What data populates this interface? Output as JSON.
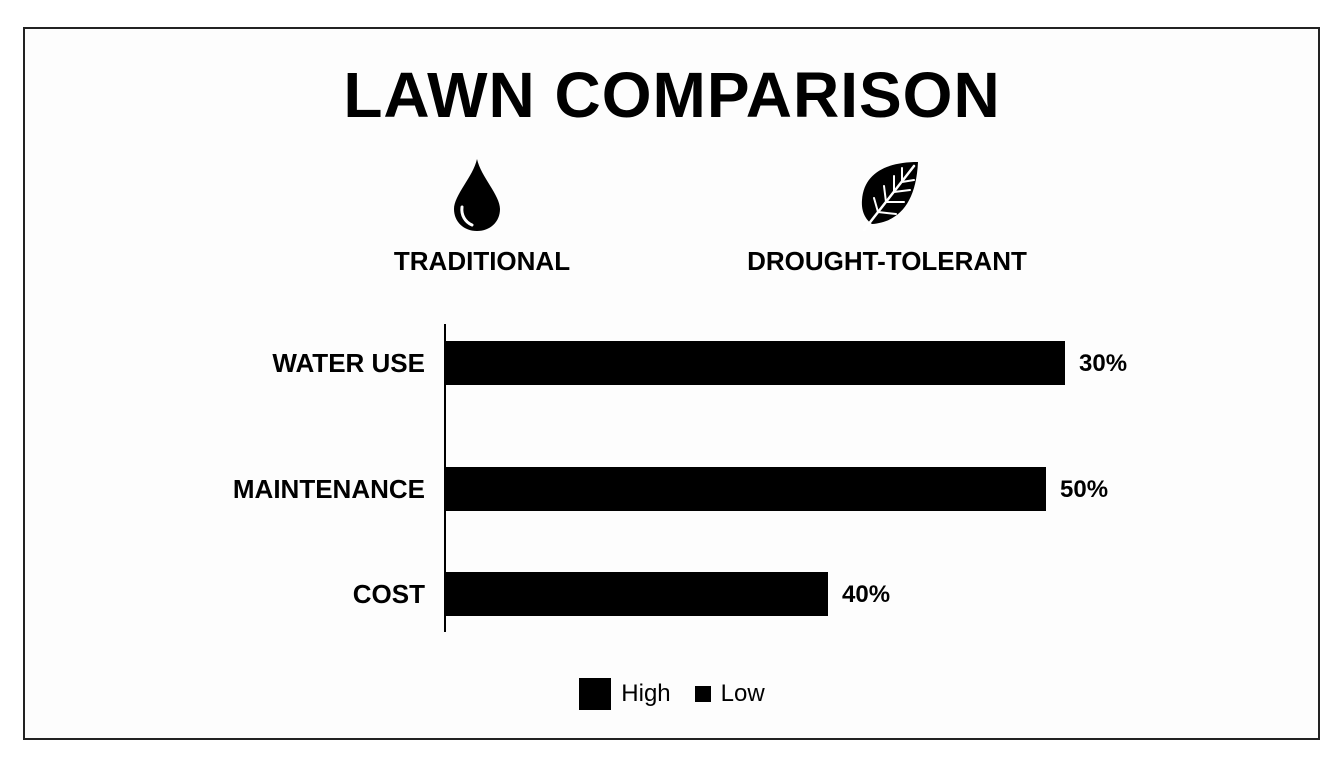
{
  "title": "LAWN COMPARISON",
  "columns": [
    {
      "label": "TRADITIONAL",
      "icon": "water-drop-icon"
    },
    {
      "label": "DROUGHT-TOLERANT",
      "icon": "leaf-icon"
    }
  ],
  "chart_data": {
    "type": "bar",
    "orientation": "horizontal",
    "categories": [
      "WATER USE",
      "MAINTENANCE",
      "COST"
    ],
    "values": [
      30,
      50,
      40
    ],
    "value_labels": [
      "30%",
      "50%",
      "40%"
    ],
    "legend": {
      "position": "bottom",
      "entries": [
        "High",
        "Low"
      ]
    },
    "grid": false,
    "colors": {
      "bar": "#000000"
    }
  }
}
